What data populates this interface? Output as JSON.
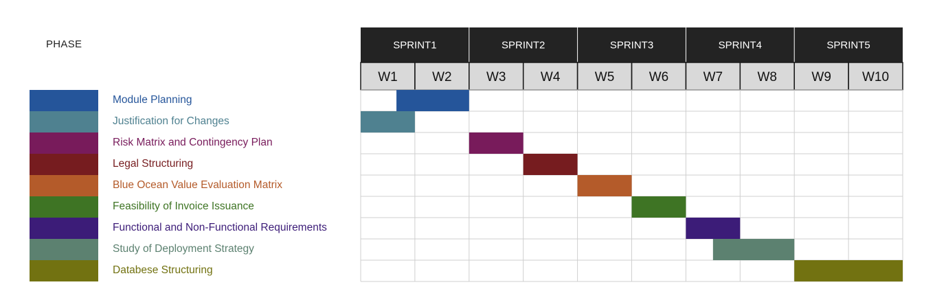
{
  "header": {
    "phase_label": "PHASE"
  },
  "sprints": [
    "SPRINT1",
    "SPRINT2",
    "SPRINT3",
    "SPRINT4",
    "SPRINT5"
  ],
  "weeks": [
    "W1",
    "W2",
    "W3",
    "W4",
    "W5",
    "W6",
    "W7",
    "W8",
    "W9",
    "W10"
  ],
  "colors": {
    "sprint_header_bg": "#232323",
    "week_header_bg": "#d9d9d9",
    "grid_line": "#cfcfcf"
  },
  "chart_data": {
    "type": "gantt",
    "x_unit": "week",
    "tasks": [
      {
        "label": "Module Planning",
        "color": "#25559a",
        "start": 0.66,
        "end": 2
      },
      {
        "label": "Justification for Changes",
        "color": "#4f8190",
        "start": 0,
        "end": 1
      },
      {
        "label": "Risk Matrix and Contingency Plan",
        "color": "#781b5b",
        "start": 2,
        "end": 3
      },
      {
        "label": "Legal Structuring",
        "color": "#761c1f",
        "start": 3,
        "end": 4
      },
      {
        "label": "Blue Ocean Value Evaluation Matrix",
        "color": "#b45b2a",
        "start": 4,
        "end": 5
      },
      {
        "label": "Feasibility of Invoice Issuance",
        "color": "#3e7424",
        "start": 5,
        "end": 6
      },
      {
        "label": "Functional and Non-Functional Requirements",
        "color": "#3c1c78",
        "start": 6,
        "end": 7
      },
      {
        "label": "Study of Deployment Strategy",
        "color": "#5c8170",
        "start": 6.5,
        "end": 8
      },
      {
        "label": "Databese Structuring",
        "color": "#727211",
        "start": 8,
        "end": 10
      }
    ]
  }
}
